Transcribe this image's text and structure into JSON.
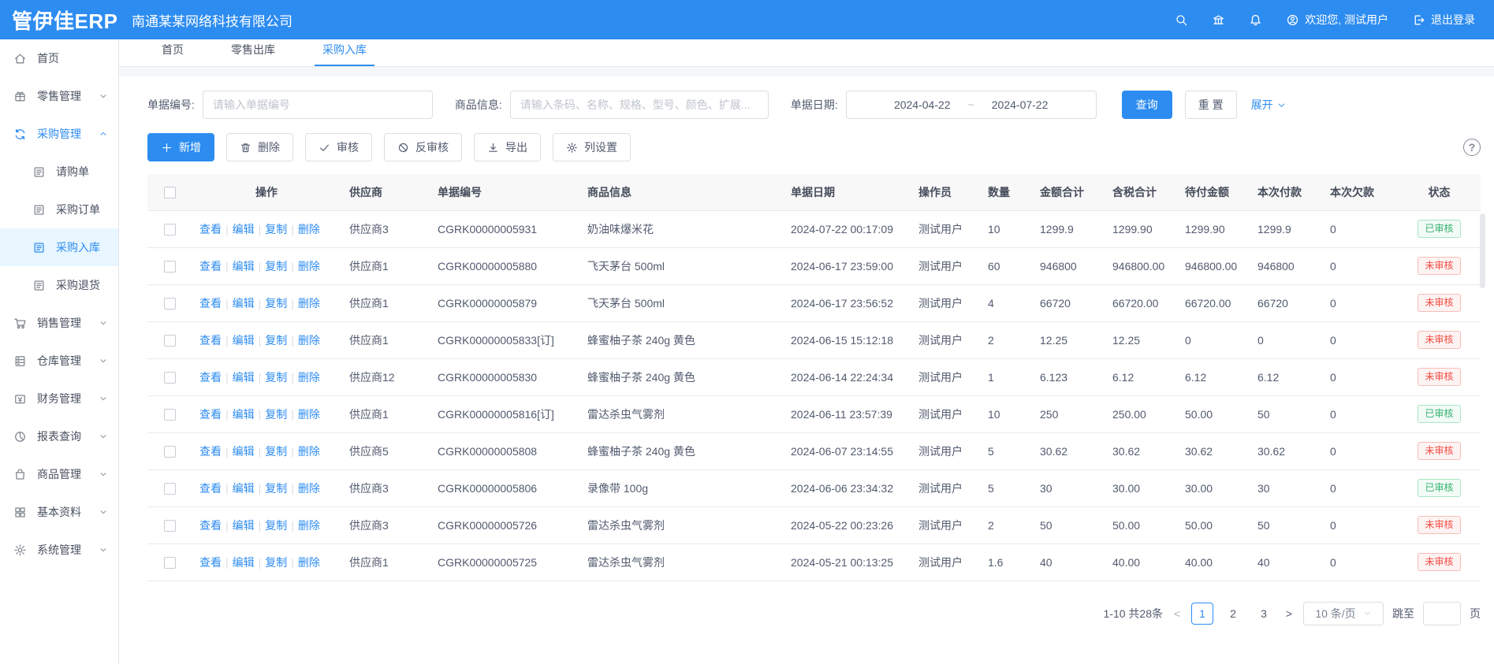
{
  "colors": {
    "accent": "#2d8cf0",
    "success": "#32b16c",
    "danger": "#f34b42",
    "header_bg": "#2d8cf0"
  },
  "topbar": {
    "logo": "管伊佳ERP",
    "company": "南通某某网络科技有限公司",
    "icons": [
      "search",
      "bank",
      "bell"
    ],
    "welcome": "欢迎您, 测试用户",
    "logout": "退出登录"
  },
  "tabs": [
    {
      "label": "首页",
      "active": false
    },
    {
      "label": "零售出库",
      "active": false
    },
    {
      "label": "采购入库",
      "active": true
    }
  ],
  "sidebar": {
    "items": [
      {
        "label": "首页",
        "icon": "home"
      },
      {
        "label": "零售管理",
        "icon": "retail",
        "chevron": "down"
      },
      {
        "label": "采购管理",
        "icon": "purchase",
        "chevron": "up",
        "parent_active": true
      },
      {
        "label": "请购单",
        "icon": "doc",
        "sub": true
      },
      {
        "label": "采购订单",
        "icon": "doc",
        "sub": true
      },
      {
        "label": "采购入库",
        "icon": "doc",
        "sub": true,
        "active": true
      },
      {
        "label": "采购退货",
        "icon": "doc",
        "sub": true
      },
      {
        "label": "销售管理",
        "icon": "sale",
        "chevron": "down"
      },
      {
        "label": "仓库管理",
        "icon": "warehouse",
        "chevron": "down"
      },
      {
        "label": "财务管理",
        "icon": "finance",
        "chevron": "down"
      },
      {
        "label": "报表查询",
        "icon": "report",
        "chevron": "down"
      },
      {
        "label": "商品管理",
        "icon": "product",
        "chevron": "down"
      },
      {
        "label": "基本资料",
        "icon": "basedata",
        "chevron": "down"
      },
      {
        "label": "系统管理",
        "icon": "system",
        "chevron": "down"
      }
    ]
  },
  "filters": {
    "doc_no": {
      "label": "单据编号:",
      "placeholder": "请输入单据编号",
      "value": ""
    },
    "product": {
      "label": "商品信息:",
      "placeholder": "请输入条码、名称、规格、型号、颜色、扩展...",
      "value": ""
    },
    "date": {
      "label": "单据日期:",
      "start": "2024-04-22",
      "separator": "~",
      "end": "2024-07-22"
    },
    "search_label": "查询",
    "reset_label": "重 置",
    "expand_label": "展开"
  },
  "toolbar": {
    "buttons": [
      {
        "label": "新增",
        "icon": "plus",
        "primary": true
      },
      {
        "label": "删除",
        "icon": "trash"
      },
      {
        "label": "审核",
        "icon": "check"
      },
      {
        "label": "反审核",
        "icon": "ban"
      },
      {
        "label": "导出",
        "icon": "download"
      },
      {
        "label": "列设置",
        "icon": "gear"
      }
    ],
    "help_label": "?"
  },
  "table": {
    "headers": [
      "操作",
      "供应商",
      "单据编号",
      "商品信息",
      "单据日期",
      "操作员",
      "数量",
      "金额合计",
      "含税合计",
      "待付金额",
      "本次付款",
      "本次欠款",
      "状态"
    ],
    "row_actions": [
      "查看",
      "编辑",
      "复制",
      "删除"
    ],
    "rows": [
      {
        "supplier": "供应商3",
        "order_no": "CGRK00000005931",
        "product": "奶油味爆米花",
        "date": "2024-07-22 00:17:09",
        "operator": "测试用户",
        "qty": "10",
        "amount": "1299.9",
        "amount_tax": "1299.90",
        "payable": "1299.90",
        "paid": "1299.9",
        "owed": "0",
        "status": "已审核",
        "status_type": "approved"
      },
      {
        "supplier": "供应商1",
        "order_no": "CGRK00000005880",
        "product": "飞天茅台 500ml",
        "date": "2024-06-17 23:59:00",
        "operator": "测试用户",
        "qty": "60",
        "amount": "946800",
        "amount_tax": "946800.00",
        "payable": "946800.00",
        "paid": "946800",
        "owed": "0",
        "status": "未审核",
        "status_type": "pending"
      },
      {
        "supplier": "供应商1",
        "order_no": "CGRK00000005879",
        "product": "飞天茅台 500ml",
        "date": "2024-06-17 23:56:52",
        "operator": "测试用户",
        "qty": "4",
        "amount": "66720",
        "amount_tax": "66720.00",
        "payable": "66720.00",
        "paid": "66720",
        "owed": "0",
        "status": "未审核",
        "status_type": "pending"
      },
      {
        "supplier": "供应商1",
        "order_no": "CGRK00000005833[订]",
        "product": "蜂蜜柚子茶 240g 黄色",
        "date": "2024-06-15 15:12:18",
        "operator": "测试用户",
        "qty": "2",
        "amount": "12.25",
        "amount_tax": "12.25",
        "payable": "0",
        "paid": "0",
        "owed": "0",
        "status": "未审核",
        "status_type": "pending"
      },
      {
        "supplier": "供应商12",
        "order_no": "CGRK00000005830",
        "product": "蜂蜜柚子茶 240g 黄色",
        "date": "2024-06-14 22:24:34",
        "operator": "测试用户",
        "qty": "1",
        "amount": "6.123",
        "amount_tax": "6.12",
        "payable": "6.12",
        "paid": "6.12",
        "owed": "0",
        "status": "未审核",
        "status_type": "pending"
      },
      {
        "supplier": "供应商1",
        "order_no": "CGRK00000005816[订]",
        "product": "雷达杀虫气雾剂",
        "date": "2024-06-11 23:57:39",
        "operator": "测试用户",
        "qty": "10",
        "amount": "250",
        "amount_tax": "250.00",
        "payable": "50.00",
        "paid": "50",
        "owed": "0",
        "status": "已审核",
        "status_type": "approved"
      },
      {
        "supplier": "供应商5",
        "order_no": "CGRK00000005808",
        "product": "蜂蜜柚子茶 240g 黄色",
        "date": "2024-06-07 23:14:55",
        "operator": "测试用户",
        "qty": "5",
        "amount": "30.62",
        "amount_tax": "30.62",
        "payable": "30.62",
        "paid": "30.62",
        "owed": "0",
        "status": "未审核",
        "status_type": "pending"
      },
      {
        "supplier": "供应商3",
        "order_no": "CGRK00000005806",
        "product": "录像带 100g",
        "date": "2024-06-06 23:34:32",
        "operator": "测试用户",
        "qty": "5",
        "amount": "30",
        "amount_tax": "30.00",
        "payable": "30.00",
        "paid": "30",
        "owed": "0",
        "status": "已审核",
        "status_type": "approved"
      },
      {
        "supplier": "供应商3",
        "order_no": "CGRK00000005726",
        "product": "雷达杀虫气雾剂",
        "date": "2024-05-22 00:23:26",
        "operator": "测试用户",
        "qty": "2",
        "amount": "50",
        "amount_tax": "50.00",
        "payable": "50.00",
        "paid": "50",
        "owed": "0",
        "status": "未审核",
        "status_type": "pending"
      },
      {
        "supplier": "供应商1",
        "order_no": "CGRK00000005725",
        "product": "雷达杀虫气雾剂",
        "date": "2024-05-21 00:13:25",
        "operator": "测试用户",
        "qty": "1.6",
        "amount": "40",
        "amount_tax": "40.00",
        "payable": "40.00",
        "paid": "40",
        "owed": "0",
        "status": "未审核",
        "status_type": "pending"
      }
    ]
  },
  "pagination": {
    "summary": "1-10 共28条",
    "prev": "<",
    "next": ">",
    "pages": [
      "1",
      "2",
      "3"
    ],
    "current": "1",
    "page_size": "10 条/页",
    "jump_label": "跳至",
    "page_suffix": "页"
  }
}
